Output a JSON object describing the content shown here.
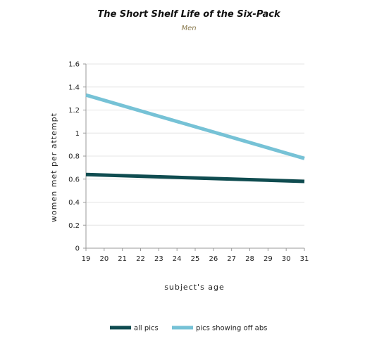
{
  "chart_data": {
    "type": "line",
    "title": "The Short Shelf Life of the Six-Pack",
    "subtitle": "Men",
    "xlabel": "subject's age",
    "ylabel": "women met per attempt",
    "x": [
      19,
      31
    ],
    "xticks": [
      19,
      20,
      21,
      22,
      23,
      24,
      25,
      26,
      27,
      28,
      29,
      30,
      31
    ],
    "xlim": [
      19,
      31
    ],
    "ylim": [
      0,
      1.6
    ],
    "yticks": [
      0,
      0.2,
      0.4,
      0.6,
      0.8,
      1,
      1.2,
      1.4,
      1.6
    ],
    "ytick_labels": [
      "0",
      "0.2",
      "0.4",
      "0.6",
      "0.8",
      "1",
      "1.2",
      "1.4",
      "1.6"
    ],
    "grid": true,
    "legend_position": "bottom",
    "series": [
      {
        "name": "all pics",
        "values": [
          0.64,
          0.58
        ],
        "color": "#0f4c50"
      },
      {
        "name": "pics showing off abs",
        "values": [
          1.33,
          0.78
        ],
        "color": "#76c2d6"
      }
    ]
  }
}
